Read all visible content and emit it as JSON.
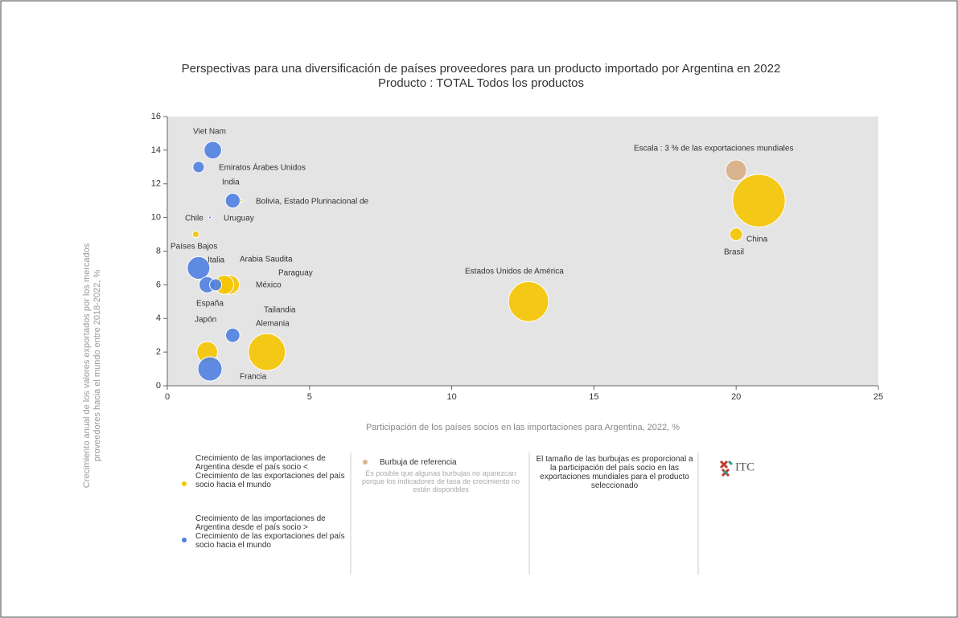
{
  "chart_data": {
    "type": "bubble",
    "title": "Perspectivas para una diversificación de países proveedores para un producto importado por Argentina en 2022",
    "subtitle": "Producto : TOTAL Todos los productos",
    "x_label": "Participación de los países socios en las importaciones para Argentina, 2022, %",
    "y_label": "Crecimiento anual de los valores exportados por los mercados proveedores hacia el mundo entre 2018-2022, %",
    "xlim": [
      0,
      25
    ],
    "xticks": [
      0,
      5,
      10,
      15,
      20,
      25
    ],
    "ylim": [
      0,
      16
    ],
    "yticks": [
      0,
      2,
      4,
      6,
      8,
      10,
      12,
      14,
      16
    ],
    "series": [
      {
        "name": "Crecimiento de las importaciones de Argentina desde el país socio < Crecimiento de las exportaciones del país socio hacia el mundo",
        "color": "#f5c400",
        "labels": [
          "Chile",
          "Arabia Saudita",
          "México",
          "Paraguay",
          "Japón",
          "Alemania",
          "Estados Unidos de América",
          "China",
          "Brasil",
          "Bolivia, Estado Plurinacional de"
        ],
        "x": [
          1.0,
          2.2,
          2.0,
          2.4,
          1.4,
          3.5,
          12.7,
          20.8,
          20.0,
          2.6
        ],
        "values": [
          9,
          6,
          6,
          5.5,
          2,
          2,
          5,
          11,
          9,
          11
        ],
        "sizes": [
          0.3,
          2.5,
          2.5,
          0.05,
          3,
          9.4,
          11,
          19,
          1.1,
          0.05
        ]
      },
      {
        "name": "Crecimiento de las importaciones de Argentina desde el país socio > Crecimiento de las exportaciones del país socio hacia el mundo",
        "color": "#4f7fe0",
        "labels": [
          "Viet Nam",
          "Emiratos Árabes Unidos",
          "India",
          "Uruguay",
          "Países Bajos",
          "Italia",
          "España",
          "Tailandia",
          "Francia"
        ],
        "x": [
          1.6,
          1.1,
          2.3,
          1.5,
          1.1,
          1.4,
          1.7,
          2.3,
          1.5
        ],
        "values": [
          14,
          13,
          11,
          10,
          7,
          6,
          6,
          3,
          1
        ],
        "sizes": [
          2.1,
          0.9,
          1.5,
          0.05,
          3.5,
          1.8,
          1.0,
          1.4,
          4
        ]
      }
    ],
    "reference": {
      "label": "Escala : 3 % de las exportaciones mundiales",
      "color": "#d9b48e",
      "x": 20.0,
      "y": 12.8,
      "size": 3,
      "legend_title": "Burbuja de referencia",
      "note": "Es posible que algunas burbujas no aparezcan porque los indicadores de tasa de crecimiento no están disponibles"
    },
    "size_note": "El tamaño de las burbujas es proporcional a la participación del país socio en las exportaciones mundiales para el producto seleccionado",
    "logo": "ITC"
  }
}
